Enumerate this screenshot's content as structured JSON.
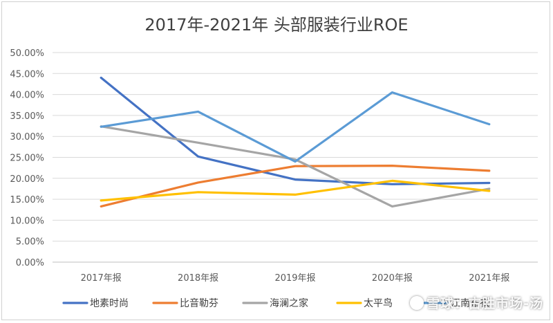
{
  "chart_data": {
    "type": "line",
    "title": "2017年-2021年 头部服装行业ROE",
    "categories": [
      "2017年报",
      "2018年报",
      "2019年报",
      "2020年报",
      "2021年报"
    ],
    "ylim": [
      0,
      50
    ],
    "y_ticks": [
      "0.00%",
      "5.00%",
      "10.00%",
      "15.00%",
      "20.00%",
      "25.00%",
      "30.00%",
      "35.00%",
      "40.00%",
      "45.00%",
      "50.00%"
    ],
    "grid": true,
    "legend_position": "bottom",
    "series": [
      {
        "name": "地素时尚",
        "color": "#4472C4",
        "values": [
          44.0,
          25.2,
          19.7,
          18.6,
          18.9
        ]
      },
      {
        "name": "比音勒芬",
        "color": "#ED7D31",
        "values": [
          13.3,
          19.0,
          22.9,
          23.0,
          21.8
        ]
      },
      {
        "name": "海澜之家",
        "color": "#A5A5A5",
        "values": [
          32.4,
          28.5,
          24.5,
          13.3,
          17.5
        ]
      },
      {
        "name": "太平鸟",
        "color": "#FFC000",
        "values": [
          14.7,
          16.7,
          16.1,
          19.4,
          17.0
        ]
      },
      {
        "name": "江南布衣",
        "color": "#5B9BD5",
        "values": [
          32.3,
          35.9,
          24.0,
          40.5,
          32.9
        ]
      }
    ]
  },
  "watermark": {
    "text": "雪球：古胜市场-汤"
  }
}
